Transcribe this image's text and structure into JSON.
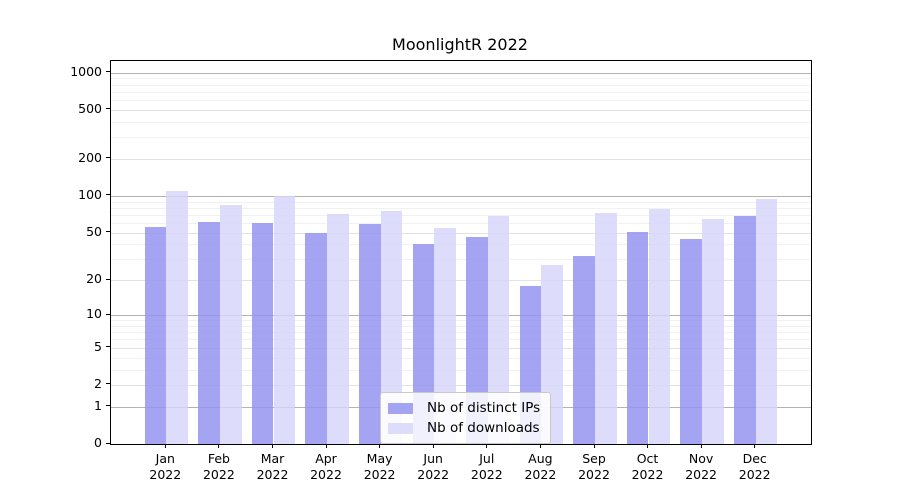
{
  "title": "MoonlightR 2022",
  "legend": {
    "items": [
      {
        "label": "Nb of distinct IPs",
        "color": "rgba(148,148,241,0.85)"
      },
      {
        "label": "Nb of downloads",
        "color": "rgba(213,213,250,0.82)"
      }
    ]
  },
  "chart_data": {
    "type": "bar",
    "title": "MoonlightR 2022",
    "categories": [
      "Jan 2022",
      "Feb 2022",
      "Mar 2022",
      "Apr 2022",
      "May 2022",
      "Jun 2022",
      "Jul 2022",
      "Aug 2022",
      "Sep 2022",
      "Oct 2022",
      "Nov 2022",
      "Dec 2022"
    ],
    "series": [
      {
        "name": "Nb of distinct IPs",
        "color": "rgba(148,148,241,0.85)",
        "values": [
          56,
          61,
          60,
          50,
          59,
          40,
          46,
          18,
          32,
          51,
          44,
          69
        ]
      },
      {
        "name": "Nb of downloads",
        "color": "rgba(213,213,250,0.82)",
        "values": [
          110,
          85,
          100,
          71,
          75,
          55,
          68,
          27,
          72,
          78,
          65,
          95
        ]
      }
    ],
    "xlabel": "",
    "ylabel": "",
    "y_scale": "log10(1+y)",
    "y_ticks": [
      1000,
      500,
      200,
      100,
      50,
      20,
      10,
      5,
      2,
      1,
      0
    ],
    "ylim": [
      0,
      1240
    ],
    "grid": true,
    "legend_position": "lower-center-inside"
  }
}
